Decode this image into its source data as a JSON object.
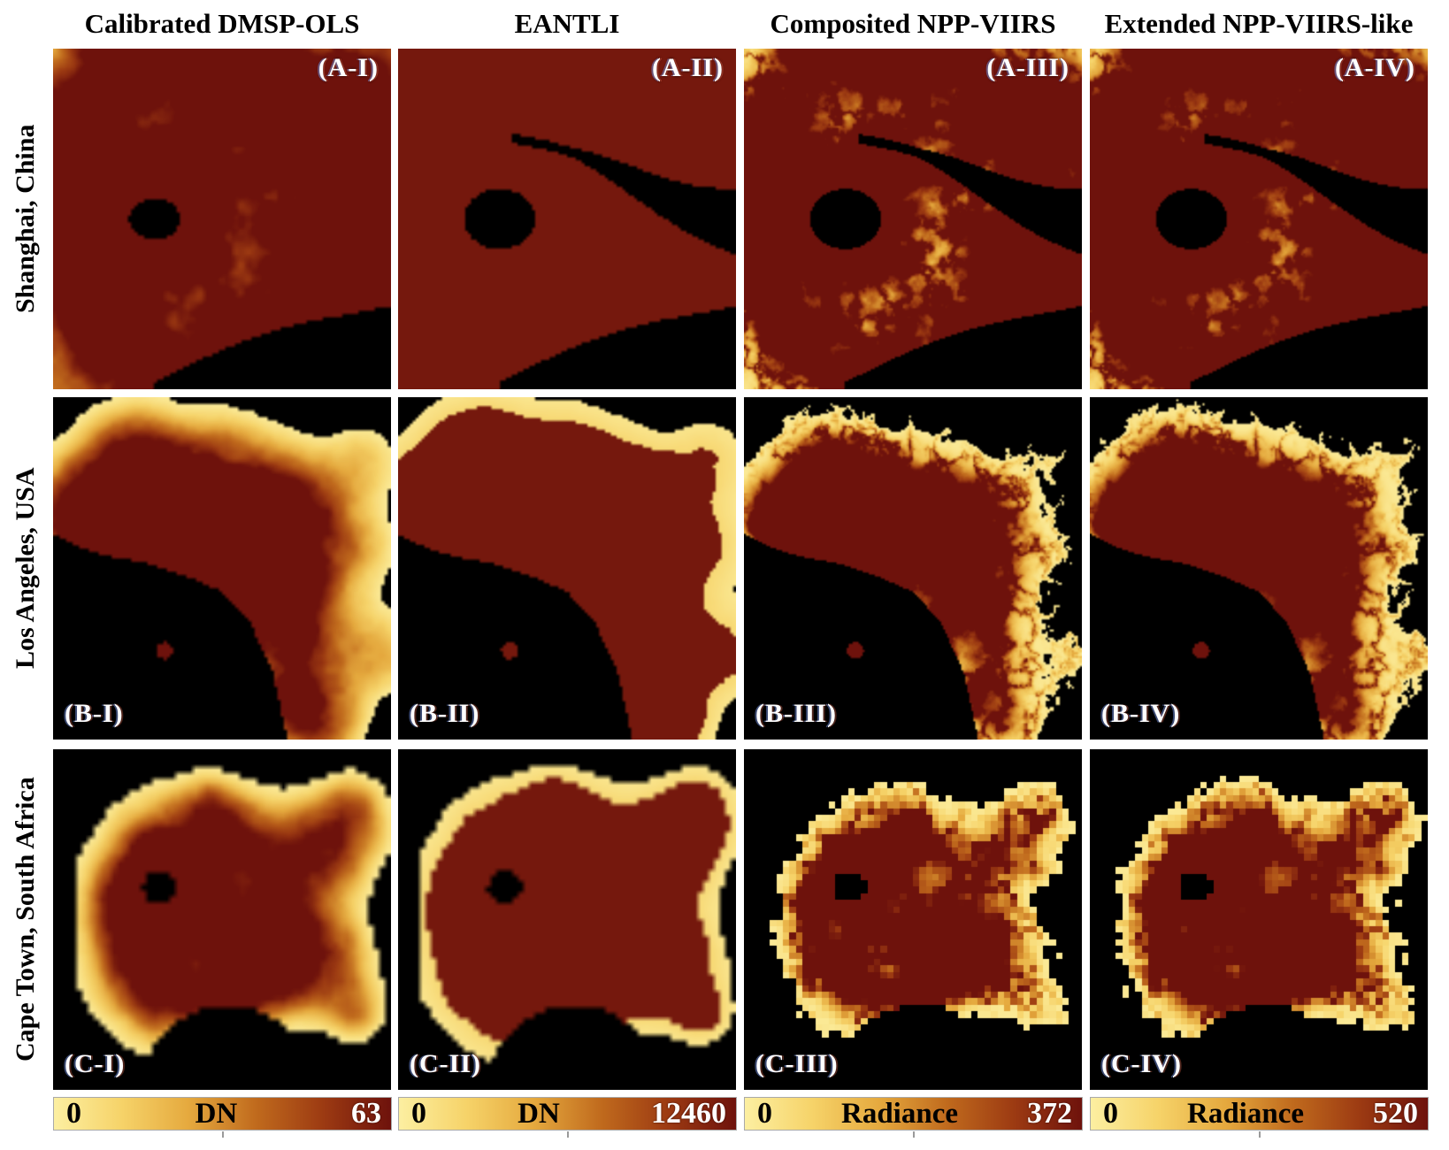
{
  "figure": {
    "columns": [
      {
        "id": "I",
        "title": "Calibrated DMSP-OLS"
      },
      {
        "id": "II",
        "title": "EANTLI"
      },
      {
        "id": "III",
        "title": "Composited NPP-VIIRS"
      },
      {
        "id": "IV",
        "title": "Extended NPP-VIIRS-like"
      }
    ],
    "rows": [
      {
        "id": "A",
        "label": "Shanghai, China"
      },
      {
        "id": "B",
        "label": "Los Angeles, USA"
      },
      {
        "id": "C",
        "label": "Cape Town, South Africa"
      }
    ],
    "panels": [
      {
        "row": "A",
        "col": "I",
        "label": "(A-I)"
      },
      {
        "row": "A",
        "col": "II",
        "label": "(A-II)"
      },
      {
        "row": "A",
        "col": "III",
        "label": "(A-III)"
      },
      {
        "row": "A",
        "col": "IV",
        "label": "(A-IV)"
      },
      {
        "row": "B",
        "col": "I",
        "label": "(B-I)"
      },
      {
        "row": "B",
        "col": "II",
        "label": "(B-II)"
      },
      {
        "row": "B",
        "col": "III",
        "label": "(B-III)"
      },
      {
        "row": "B",
        "col": "IV",
        "label": "(B-IV)"
      },
      {
        "row": "C",
        "col": "I",
        "label": "(C-I)"
      },
      {
        "row": "C",
        "col": "II",
        "label": "(C-II)"
      },
      {
        "row": "C",
        "col": "III",
        "label": "(C-III)"
      },
      {
        "row": "C",
        "col": "IV",
        "label": "(C-IV)"
      }
    ],
    "colorbars": [
      {
        "min": "0",
        "label": "DN",
        "max": "63"
      },
      {
        "min": "0",
        "label": "DN",
        "max": "12460"
      },
      {
        "min": "0",
        "label": "Radiance",
        "max": "372"
      },
      {
        "min": "0",
        "label": "Radiance",
        "max": "520"
      }
    ],
    "colors": {
      "page_background": "#ffffff",
      "map_background": "#000000",
      "text": "#000000",
      "panel_label": "#ffffff",
      "colormap": [
        "#FCEFA1",
        "#F6D369",
        "#E5A93E",
        "#C06A1D",
        "#9C3A12",
        "#6E120C"
      ]
    }
  }
}
